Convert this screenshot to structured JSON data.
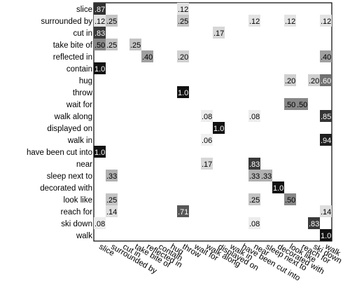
{
  "chart_data": {
    "type": "heatmap",
    "title": "",
    "xlabel": "",
    "ylabel": "",
    "grid": false,
    "legend": "none",
    "rows": [
      "slice",
      "surrounded by",
      "cut in",
      "take bite of",
      "reflected in",
      "contain",
      "hug",
      "throw",
      "wait for",
      "walk along",
      "displayed on",
      "walk in",
      "have been cut into",
      "near",
      "sleep next to",
      "decorated with",
      "look like",
      "reach for",
      "ski down",
      "walk"
    ],
    "columns": [
      "slice",
      "surrounded by",
      "cut in",
      "take bite of",
      "reflected in",
      "contain",
      "hug",
      "throw",
      "wait for",
      "walk along",
      "displayed on",
      "walk in",
      "have been cut into",
      "near",
      "sleep next to",
      "decorated with",
      "look like",
      "reach for",
      "ski down",
      "walk"
    ],
    "cells": [
      {
        "row": 0,
        "col": 0,
        "value": 0.87,
        "label": ".87"
      },
      {
        "row": 0,
        "col": 7,
        "value": 0.12,
        "label": ".12"
      },
      {
        "row": 1,
        "col": 0,
        "value": 0.12,
        "label": ".12"
      },
      {
        "row": 1,
        "col": 1,
        "value": 0.25,
        "label": ".25"
      },
      {
        "row": 1,
        "col": 7,
        "value": 0.25,
        "label": ".25"
      },
      {
        "row": 1,
        "col": 13,
        "value": 0.12,
        "label": ".12"
      },
      {
        "row": 1,
        "col": 16,
        "value": 0.12,
        "label": ".12"
      },
      {
        "row": 1,
        "col": 19,
        "value": 0.12,
        "label": ".12"
      },
      {
        "row": 2,
        "col": 0,
        "value": 0.83,
        "label": ".83"
      },
      {
        "row": 2,
        "col": 10,
        "value": 0.17,
        "label": ".17"
      },
      {
        "row": 3,
        "col": 0,
        "value": 0.5,
        "label": ".50"
      },
      {
        "row": 3,
        "col": 1,
        "value": 0.25,
        "label": ".25"
      },
      {
        "row": 3,
        "col": 3,
        "value": 0.25,
        "label": ".25"
      },
      {
        "row": 4,
        "col": 4,
        "value": 0.4,
        "label": ".40"
      },
      {
        "row": 4,
        "col": 7,
        "value": 0.2,
        "label": ".20"
      },
      {
        "row": 4,
        "col": 19,
        "value": 0.4,
        "label": ".40"
      },
      {
        "row": 5,
        "col": 0,
        "value": 1.0,
        "label": "1.0"
      },
      {
        "row": 6,
        "col": 16,
        "value": 0.2,
        "label": ".20"
      },
      {
        "row": 6,
        "col": 18,
        "value": 0.2,
        "label": ".20"
      },
      {
        "row": 6,
        "col": 19,
        "value": 0.6,
        "label": ".60"
      },
      {
        "row": 7,
        "col": 7,
        "value": 1.0,
        "label": "1.0"
      },
      {
        "row": 8,
        "col": 16,
        "value": 0.5,
        "label": ".50"
      },
      {
        "row": 8,
        "col": 17,
        "value": 0.5,
        "label": ".50"
      },
      {
        "row": 9,
        "col": 9,
        "value": 0.08,
        "label": ".08"
      },
      {
        "row": 9,
        "col": 13,
        "value": 0.08,
        "label": ".08"
      },
      {
        "row": 9,
        "col": 19,
        "value": 0.85,
        "label": ".85"
      },
      {
        "row": 10,
        "col": 10,
        "value": 1.0,
        "label": "1.0"
      },
      {
        "row": 11,
        "col": 9,
        "value": 0.06,
        "label": ".06"
      },
      {
        "row": 11,
        "col": 19,
        "value": 0.94,
        "label": ".94"
      },
      {
        "row": 12,
        "col": 0,
        "value": 1.0,
        "label": "1.0"
      },
      {
        "row": 13,
        "col": 9,
        "value": 0.17,
        "label": ".17"
      },
      {
        "row": 13,
        "col": 13,
        "value": 0.83,
        "label": ".83"
      },
      {
        "row": 14,
        "col": 1,
        "value": 0.33,
        "label": ".33"
      },
      {
        "row": 14,
        "col": 13,
        "value": 0.33,
        "label": ".33"
      },
      {
        "row": 14,
        "col": 14,
        "value": 0.33,
        "label": ".33"
      },
      {
        "row": 15,
        "col": 15,
        "value": 1.0,
        "label": "1.0"
      },
      {
        "row": 16,
        "col": 1,
        "value": 0.25,
        "label": ".25"
      },
      {
        "row": 16,
        "col": 13,
        "value": 0.25,
        "label": ".25"
      },
      {
        "row": 16,
        "col": 16,
        "value": 0.5,
        "label": ".50"
      },
      {
        "row": 17,
        "col": 1,
        "value": 0.14,
        "label": ".14"
      },
      {
        "row": 17,
        "col": 7,
        "value": 0.71,
        "label": ".71"
      },
      {
        "row": 17,
        "col": 19,
        "value": 0.14,
        "label": ".14"
      },
      {
        "row": 18,
        "col": 0,
        "value": 0.08,
        "label": ".08"
      },
      {
        "row": 18,
        "col": 13,
        "value": 0.08,
        "label": ".08"
      },
      {
        "row": 18,
        "col": 18,
        "value": 0.83,
        "label": ".83"
      },
      {
        "row": 19,
        "col": 19,
        "value": 1.0,
        "label": "1.0"
      }
    ]
  }
}
